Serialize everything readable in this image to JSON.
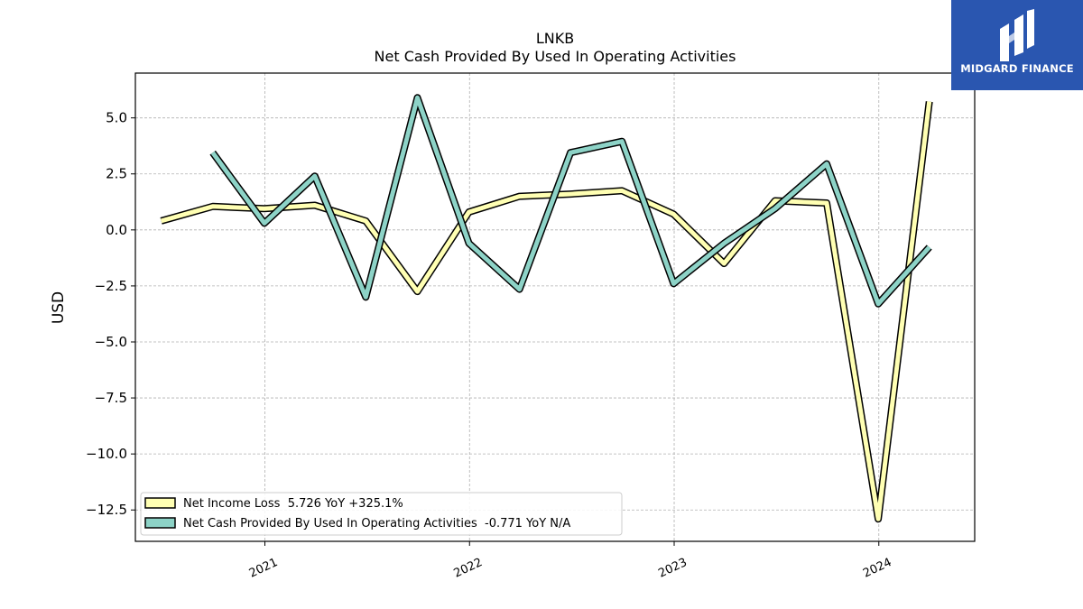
{
  "brand": {
    "name": "MIDGARD FINANCE"
  },
  "chart_data": {
    "type": "line",
    "title": "LNKB",
    "subtitle": "Net Cash Provided By Used In Operating Activities",
    "ylabel": "USD",
    "xlabel": "",
    "ylim": [
      -13.9,
      7.0
    ],
    "xlim": [
      "2020-05-15",
      "2024-06-20"
    ],
    "x_ticks": [
      "2021",
      "2022",
      "2023",
      "2024"
    ],
    "y_ticks": [
      5.0,
      2.5,
      0.0,
      -2.5,
      -5.0,
      -7.5,
      -10.0,
      -12.5
    ],
    "y_tick_labels": [
      "5.0",
      "2.5",
      "0.0",
      "−2.5",
      "−5.0",
      "−7.5",
      "−10.0",
      "−12.5"
    ],
    "grid": true,
    "legend_position": "lower-left",
    "series": [
      {
        "name": "Net Income Loss",
        "legend_label": "Net Income Loss  5.726 YoY +325.1%",
        "color": "#ffffb3",
        "x": [
          "2020-06-30",
          "2020-09-30",
          "2020-12-31",
          "2021-03-31",
          "2021-06-30",
          "2021-09-30",
          "2021-12-31",
          "2022-03-31",
          "2022-06-30",
          "2022-09-30",
          "2022-12-31",
          "2023-03-31",
          "2023-06-30",
          "2023-09-30",
          "2023-12-31",
          "2024-03-31"
        ],
        "values": [
          0.4,
          1.05,
          0.95,
          1.1,
          0.4,
          -2.75,
          0.8,
          1.5,
          1.6,
          1.75,
          0.7,
          -1.5,
          1.3,
          1.2,
          -12.9,
          5.726
        ]
      },
      {
        "name": "Net Cash Provided By Used In Operating Activities",
        "legend_label": "Net Cash Provided By Used In Operating Activities  -0.771 YoY N/A",
        "color": "#8dd3c7",
        "x": [
          "2020-09-30",
          "2020-12-31",
          "2021-03-31",
          "2021-06-30",
          "2021-09-30",
          "2021-12-31",
          "2022-03-31",
          "2022-06-30",
          "2022-09-30",
          "2022-12-31",
          "2023-03-31",
          "2023-06-30",
          "2023-09-30",
          "2023-12-31",
          "2024-03-31"
        ],
        "values": [
          3.45,
          0.3,
          2.4,
          -3.0,
          5.9,
          -0.6,
          -2.65,
          3.45,
          3.95,
          -2.4,
          -0.6,
          0.95,
          2.95,
          -3.3,
          -0.771
        ]
      }
    ]
  }
}
